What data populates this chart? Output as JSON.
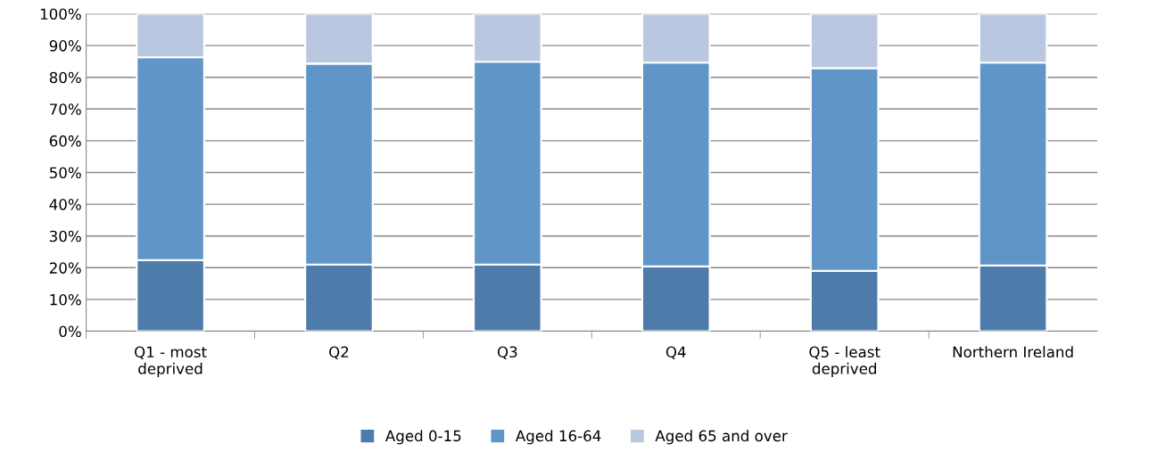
{
  "chart_data": {
    "type": "bar",
    "stacked": true,
    "categories": [
      "Q1 - most\ndeprived",
      "Q2",
      "Q3",
      "Q4",
      "Q5 - least\ndeprived",
      "Northern Ireland"
    ],
    "series": [
      {
        "name": "Aged 0-15",
        "color": "#4f7bab",
        "values": [
          22.4,
          21.0,
          21.0,
          20.4,
          19.0,
          20.7
        ]
      },
      {
        "name": "Aged 16-64",
        "color": "#5f96c7",
        "values": [
          63.9,
          63.3,
          63.9,
          64.2,
          63.9,
          63.9
        ]
      },
      {
        "name": "Aged 65 and over",
        "color": "#b9c7e0",
        "values": [
          13.7,
          15.7,
          15.1,
          15.4,
          17.1,
          15.4
        ]
      }
    ],
    "ylim": [
      0,
      100
    ],
    "yticks": [
      {
        "value": 0,
        "label": "0%"
      },
      {
        "value": 10,
        "label": "10%"
      },
      {
        "value": 20,
        "label": "20%"
      },
      {
        "value": 30,
        "label": "30%"
      },
      {
        "value": 40,
        "label": "40%"
      },
      {
        "value": 50,
        "label": "50%"
      },
      {
        "value": 60,
        "label": "60%"
      },
      {
        "value": 70,
        "label": "70%"
      },
      {
        "value": 80,
        "label": "80%"
      },
      {
        "value": 90,
        "label": "90%"
      },
      {
        "value": 100,
        "label": "100%"
      }
    ],
    "grid": "y",
    "legend": "bottom"
  }
}
